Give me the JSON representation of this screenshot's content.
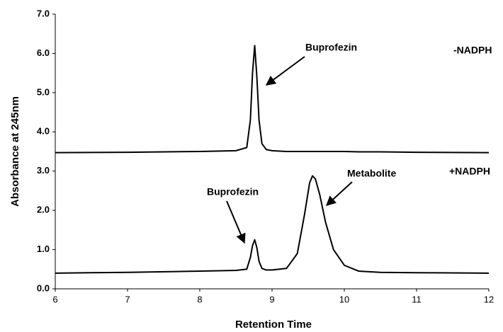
{
  "chart_data": {
    "type": "line",
    "xlabel": "Retention Time",
    "ylabel": "Absorbance at 245nm",
    "annotations": [
      "Buprofezin",
      "-NADPH",
      "Buprofezin",
      "+NADPH",
      "Metabolite"
    ],
    "x": [
      6,
      7,
      8,
      8.5,
      8.65,
      8.7,
      8.73,
      8.76,
      8.79,
      8.82,
      8.86,
      8.92,
      9.0,
      9.2,
      9.35,
      9.45,
      9.52,
      9.56,
      9.6,
      9.66,
      9.74,
      9.85,
      10.0,
      10.2,
      10.5,
      11,
      12
    ],
    "series": [
      {
        "name": "-NADPH",
        "color": "#000000",
        "values": [
          3.47,
          3.48,
          3.5,
          3.52,
          3.6,
          4.3,
          5.5,
          6.2,
          5.4,
          4.3,
          3.7,
          3.55,
          3.52,
          3.5,
          3.5,
          3.5,
          3.5,
          3.5,
          3.5,
          3.5,
          3.5,
          3.5,
          3.5,
          3.49,
          3.49,
          3.48,
          3.47
        ]
      },
      {
        "name": "+NADPH",
        "color": "#000000",
        "values": [
          0.4,
          0.42,
          0.45,
          0.47,
          0.5,
          0.8,
          1.1,
          1.25,
          1.05,
          0.7,
          0.52,
          0.48,
          0.48,
          0.52,
          0.9,
          1.9,
          2.7,
          2.88,
          2.8,
          2.4,
          1.7,
          1.0,
          0.6,
          0.45,
          0.42,
          0.41,
          0.4
        ]
      }
    ],
    "xlim": [
      6,
      12
    ],
    "xticks": [
      6,
      7,
      8,
      9,
      10,
      11,
      12
    ],
    "ylim": [
      0,
      7
    ],
    "yticks": [
      {
        "value": 0,
        "label": "0.0"
      },
      {
        "value": 1,
        "label": "1.0"
      },
      {
        "value": 2,
        "label": "2.0"
      },
      {
        "value": 3,
        "label": "3.0"
      },
      {
        "value": 4,
        "label": "4.0"
      },
      {
        "value": 5,
        "label": "5.0"
      },
      {
        "value": 6,
        "label": "6.0"
      },
      {
        "value": 7,
        "label": "7.0"
      }
    ],
    "grid": false
  }
}
